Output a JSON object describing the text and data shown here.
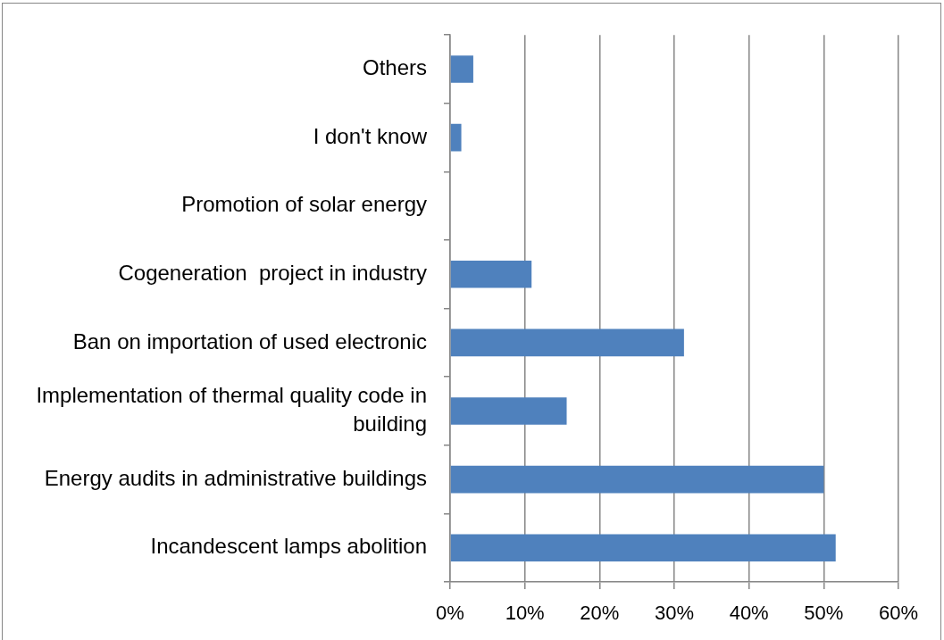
{
  "chart_data": {
    "type": "bar",
    "orientation": "horizontal",
    "categories": [
      "Others",
      "I don't know",
      "Promotion of solar energy",
      "Cogeneration  project in industry",
      "Ban on importation of used electronic",
      "Implementation of thermal quality code in building",
      "Energy audits in administrative buildings",
      "Incandescent lamps abolition"
    ],
    "values": [
      3.1,
      1.5,
      0,
      10.9,
      31.3,
      15.6,
      50.0,
      51.6
    ],
    "color": "#4f81bd",
    "xlim": [
      0,
      60
    ],
    "xticks": [
      {
        "value": 0,
        "label": "0%"
      },
      {
        "value": 10,
        "label": "10%"
      },
      {
        "value": 20,
        "label": "20%"
      },
      {
        "value": 30,
        "label": "30%"
      },
      {
        "value": 40,
        "label": "40%"
      },
      {
        "value": 50,
        "label": "50%"
      },
      {
        "value": 60,
        "label": "60%"
      }
    ],
    "grid": "x"
  }
}
